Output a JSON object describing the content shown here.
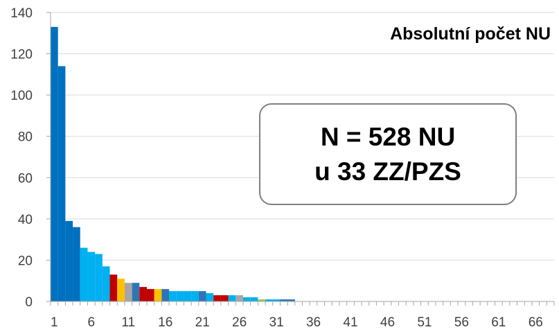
{
  "chart_data": {
    "type": "bar",
    "title": "Absolutní počet NU",
    "xlabel": "",
    "ylabel": "",
    "ylim": [
      0,
      140
    ],
    "yticks": [
      0,
      20,
      40,
      60,
      80,
      100,
      120,
      140
    ],
    "x_tick_labels": [
      "1",
      "6",
      "11",
      "16",
      "21",
      "26",
      "31",
      "36",
      "41",
      "46",
      "51",
      "56",
      "61",
      "66"
    ],
    "x_range": [
      1,
      66
    ],
    "grid": "horizontal",
    "x": [
      1,
      2,
      3,
      4,
      5,
      6,
      7,
      8,
      9,
      10,
      11,
      12,
      13,
      14,
      15,
      16,
      17,
      18,
      19,
      20,
      21,
      22,
      23,
      24,
      25,
      26,
      27,
      28,
      29,
      30,
      31,
      32,
      33
    ],
    "values": [
      133,
      114,
      39,
      36,
      26,
      24,
      23,
      17,
      13,
      11,
      9,
      9,
      7,
      6,
      6,
      6,
      5,
      5,
      5,
      5,
      5,
      4,
      3,
      3,
      3,
      3,
      2,
      2,
      1,
      1,
      1,
      1,
      1
    ],
    "bar_colors": [
      "#0070c0",
      "#0070c0",
      "#0070c0",
      "#0070c0",
      "#00b0f0",
      "#00b0f0",
      "#00b0f0",
      "#00b0f0",
      "#c00000",
      "#ffc000",
      "#a6a6a6",
      "#2e75b6",
      "#c00000",
      "#c00000",
      "#ffc000",
      "#2e75b6",
      "#00b0f0",
      "#00b0f0",
      "#00b0f0",
      "#00b0f0",
      "#2e75b6",
      "#00b0f0",
      "#c00000",
      "#c00000",
      "#00b0f0",
      "#a6a6a6",
      "#00b0f0",
      "#00b0f0",
      "#92d050",
      "#00b0f0",
      "#00b0f0",
      "#2e75b6",
      "#2e75b6"
    ]
  },
  "annotation": {
    "line1": "N = 528 NU",
    "line2": "u 33 ZZ/PZS"
  },
  "colors": {
    "axis": "#a6a6a6",
    "grid": "#d9d9d9",
    "tick_text": "#404040"
  }
}
